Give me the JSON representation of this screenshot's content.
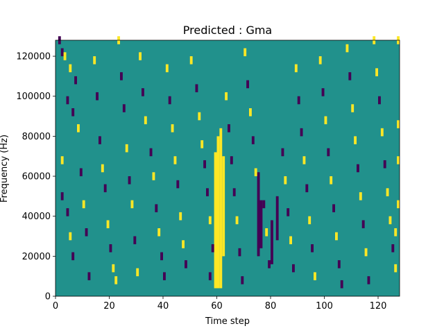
{
  "chart_data": {
    "type": "heatmap",
    "title": "Predicted : Gma",
    "xlabel": "Time step",
    "ylabel": "Frequency (Hz)",
    "xlim": [
      0,
      128
    ],
    "ylim": [
      0,
      128000
    ],
    "x_ticks": [
      0,
      20,
      40,
      60,
      80,
      100,
      120
    ],
    "x_tick_labels": [
      "0",
      "20",
      "40",
      "60",
      "80",
      "100",
      "120"
    ],
    "y_ticks": [
      0,
      20000,
      40000,
      60000,
      80000,
      100000,
      120000
    ],
    "y_tick_labels": [
      "0",
      "20000",
      "40000",
      "60000",
      "80000",
      "100000",
      "120000"
    ],
    "grid": false,
    "legend": "none",
    "colors": {
      "background": "#21918c",
      "low": "#440154",
      "high": "#fde725"
    },
    "value_levels": [
      -1,
      0,
      1
    ],
    "yellow_columns": [
      {
        "x": 59,
        "y_from": 4000,
        "y_to": 72000
      },
      {
        "x": 60,
        "y_from": 4000,
        "y_to": 80000
      },
      {
        "x": 61,
        "y_from": 4000,
        "y_to": 84000
      },
      {
        "x": 62,
        "y_from": 20000,
        "y_to": 70000
      }
    ],
    "purple_columns": [
      {
        "x": 75,
        "y_from": 20000,
        "y_to": 62000
      },
      {
        "x": 76,
        "y_from": 24000,
        "y_to": 48000
      },
      {
        "x": 80,
        "y_from": 16000,
        "y_to": 38000
      },
      {
        "x": 82,
        "y_from": 28000,
        "y_to": 50000
      }
    ],
    "sparse_cells": [
      [
        1,
        126000,
        -1
      ],
      [
        2,
        120000,
        -1
      ],
      [
        2,
        66000,
        1
      ],
      [
        2,
        48000,
        -1
      ],
      [
        3,
        118000,
        1
      ],
      [
        4,
        96000,
        -1
      ],
      [
        5,
        112000,
        1
      ],
      [
        6,
        90000,
        -1
      ],
      [
        4,
        40000,
        -1
      ],
      [
        5,
        28000,
        1
      ],
      [
        6,
        18000,
        -1
      ],
      [
        7,
        106000,
        -1
      ],
      [
        8,
        82000,
        1
      ],
      [
        9,
        60000,
        -1
      ],
      [
        10,
        44000,
        1
      ],
      [
        11,
        30000,
        -1
      ],
      [
        12,
        8000,
        -1
      ],
      [
        14,
        116000,
        1
      ],
      [
        15,
        98000,
        -1
      ],
      [
        16,
        76000,
        -1
      ],
      [
        17,
        62000,
        1
      ],
      [
        18,
        52000,
        -1
      ],
      [
        19,
        34000,
        1
      ],
      [
        20,
        22000,
        -1
      ],
      [
        21,
        12000,
        1
      ],
      [
        22,
        6000,
        1
      ],
      [
        23,
        126000,
        1
      ],
      [
        24,
        108000,
        -1
      ],
      [
        25,
        92000,
        -1
      ],
      [
        26,
        72000,
        1
      ],
      [
        27,
        56000,
        -1
      ],
      [
        28,
        44000,
        1
      ],
      [
        29,
        26000,
        -1
      ],
      [
        30,
        10000,
        1
      ],
      [
        31,
        118000,
        1
      ],
      [
        32,
        100000,
        -1
      ],
      [
        33,
        86000,
        1
      ],
      [
        35,
        70000,
        -1
      ],
      [
        36,
        58000,
        1
      ],
      [
        37,
        42000,
        -1
      ],
      [
        38,
        30000,
        1
      ],
      [
        39,
        18000,
        -1
      ],
      [
        40,
        8000,
        -1
      ],
      [
        41,
        112000,
        1
      ],
      [
        42,
        96000,
        -1
      ],
      [
        43,
        82000,
        1
      ],
      [
        44,
        66000,
        1
      ],
      [
        45,
        54000,
        -1
      ],
      [
        46,
        38000,
        1
      ],
      [
        47,
        24000,
        1
      ],
      [
        48,
        14000,
        -1
      ],
      [
        50,
        116000,
        1
      ],
      [
        52,
        102000,
        -1
      ],
      [
        53,
        88000,
        1
      ],
      [
        54,
        74000,
        1
      ],
      [
        55,
        64000,
        -1
      ],
      [
        56,
        50000,
        -1
      ],
      [
        57,
        36000,
        1
      ],
      [
        58,
        22000,
        -1
      ],
      [
        57,
        8000,
        -1
      ],
      [
        63,
        98000,
        1
      ],
      [
        64,
        82000,
        -1
      ],
      [
        65,
        66000,
        -1
      ],
      [
        66,
        50000,
        -1
      ],
      [
        67,
        36000,
        1
      ],
      [
        68,
        20000,
        -1
      ],
      [
        69,
        6000,
        -1
      ],
      [
        70,
        120000,
        1
      ],
      [
        71,
        104000,
        -1
      ],
      [
        72,
        90000,
        1
      ],
      [
        73,
        76000,
        -1
      ],
      [
        74,
        60000,
        1
      ],
      [
        77,
        44000,
        -1
      ],
      [
        78,
        30000,
        1
      ],
      [
        79,
        14000,
        -1
      ],
      [
        84,
        70000,
        -1
      ],
      [
        85,
        56000,
        1
      ],
      [
        86,
        40000,
        -1
      ],
      [
        87,
        26000,
        1
      ],
      [
        88,
        12000,
        -1
      ],
      [
        89,
        112000,
        1
      ],
      [
        90,
        96000,
        -1
      ],
      [
        91,
        80000,
        -1
      ],
      [
        92,
        66000,
        1
      ],
      [
        93,
        52000,
        -1
      ],
      [
        94,
        36000,
        1
      ],
      [
        95,
        22000,
        -1
      ],
      [
        96,
        8000,
        1
      ],
      [
        98,
        116000,
        1
      ],
      [
        99,
        100000,
        -1
      ],
      [
        100,
        86000,
        1
      ],
      [
        101,
        70000,
        -1
      ],
      [
        102,
        56000,
        1
      ],
      [
        103,
        42000,
        -1
      ],
      [
        104,
        28000,
        1
      ],
      [
        105,
        14000,
        -1
      ],
      [
        106,
        4000,
        -1
      ],
      [
        108,
        122000,
        1
      ],
      [
        109,
        108000,
        -1
      ],
      [
        110,
        92000,
        1
      ],
      [
        111,
        76000,
        1
      ],
      [
        112,
        62000,
        -1
      ],
      [
        113,
        48000,
        1
      ],
      [
        114,
        34000,
        -1
      ],
      [
        115,
        20000,
        1
      ],
      [
        116,
        6000,
        -1
      ],
      [
        118,
        126000,
        1
      ],
      [
        119,
        110000,
        1
      ],
      [
        120,
        96000,
        -1
      ],
      [
        121,
        80000,
        1
      ],
      [
        122,
        64000,
        -1
      ],
      [
        123,
        50000,
        1
      ],
      [
        124,
        36000,
        1
      ],
      [
        125,
        22000,
        -1
      ],
      [
        126,
        12000,
        1
      ],
      [
        127,
        126000,
        1
      ],
      [
        127,
        84000,
        1
      ],
      [
        127,
        66000,
        1
      ],
      [
        127,
        44000,
        1
      ],
      [
        126,
        30000,
        1
      ]
    ]
  }
}
